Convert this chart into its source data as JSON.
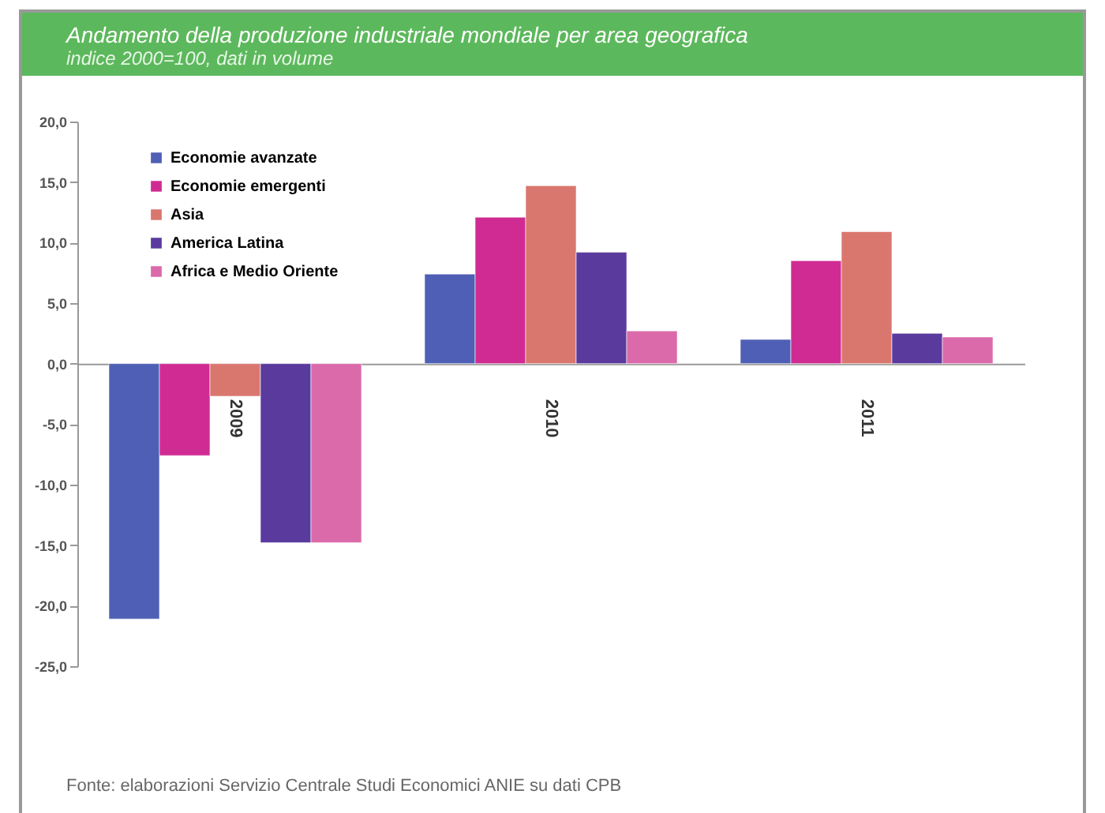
{
  "chart_data": {
    "type": "bar",
    "title": "Andamento della produzione industriale mondiale per area geografica",
    "subtitle": "indice 2000=100, dati in volume",
    "categories": [
      "2009",
      "2010",
      "2011"
    ],
    "series": [
      {
        "name": "Economie avanzate",
        "color": "#4f5fb5",
        "values": [
          -21.1,
          7.4,
          2.0
        ]
      },
      {
        "name": "Economie emergenti",
        "color": "#d02b93",
        "values": [
          -7.6,
          12.1,
          8.5
        ]
      },
      {
        "name": "Asia",
        "color": "#d9776f",
        "values": [
          -2.7,
          14.7,
          10.9
        ]
      },
      {
        "name": "America Latina",
        "color": "#5b3a9e",
        "values": [
          -14.8,
          9.2,
          2.5
        ]
      },
      {
        "name": "Africa e Medio Oriente",
        "color": "#db6aaa",
        "values": [
          -14.8,
          2.7,
          2.2
        ]
      }
    ],
    "ylim": [
      -25,
      20
    ],
    "yticks": [
      {
        "value": -25,
        "label": "-25,0"
      },
      {
        "value": -20,
        "label": "-20,0"
      },
      {
        "value": -15,
        "label": "-15,0"
      },
      {
        "value": -10,
        "label": "-10,0"
      },
      {
        "value": -5,
        "label": "-5,0"
      },
      {
        "value": 0,
        "label": "0,0"
      },
      {
        "value": 5,
        "label": "5,0"
      },
      {
        "value": 10,
        "label": "10,0"
      },
      {
        "value": 15,
        "label": "15,0"
      },
      {
        "value": 20,
        "label": "20,0"
      }
    ],
    "legend": "top left",
    "annotations": [
      "Fonte: elaborazioni Servizio Centrale Studi Economici ANIE su dati CPB"
    ]
  }
}
